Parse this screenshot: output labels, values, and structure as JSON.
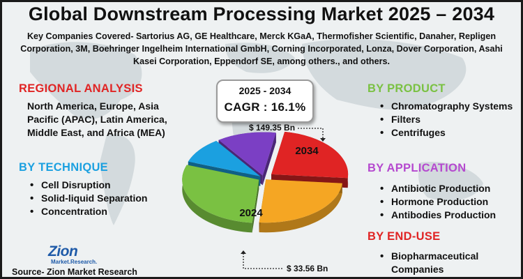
{
  "title": "Global Downstream Processing Market 2025 – 2034",
  "companies_text": "Key Companies Covered- Sartorius AG, GE Healthcare, Merck KGaA, Thermofisher Scientific, Danaher, Repligen Corporation, 3M, Boehringer Ingelheim International GmbH, Corning Incorporated, Lonza, Dover Corporation, Asahi Kasei Corporation, Eppendorf SE, among others., and others.",
  "regional": {
    "heading": "REGIONAL ANALYSIS",
    "text": "North America, Europe, Asia Pacific (APAC), Latin America, Middle East, and Africa (MEA)"
  },
  "technique": {
    "heading": "BY TECHNIQUE",
    "items": [
      "Cell Disruption",
      "Solid-liquid Separation",
      "Concentration"
    ]
  },
  "product": {
    "heading": "BY PRODUCT",
    "items": [
      "Chromatography Systems",
      "Filters",
      "Centrifuges"
    ]
  },
  "application": {
    "heading": "BY APPLICATION",
    "items": [
      "Antibiotic Production",
      "Hormone Production",
      "Antibodies Production"
    ]
  },
  "end_use": {
    "heading": "BY END-USE",
    "items": [
      "Biopharmaceutical Companies"
    ]
  },
  "cagr": {
    "period": "2025 - 2034",
    "value": "CAGR : 16.1%"
  },
  "source": "Source- Zion Market Research",
  "logo": {
    "word": "Zion",
    "sub": "Market.Research."
  },
  "colors": {
    "red": "#e02424",
    "blue": "#1ba0e0",
    "green": "#7ac142",
    "purple": "#b549cf",
    "orange": "#f5a623"
  },
  "chart_data": {
    "type": "pie",
    "title": "",
    "series": [
      {
        "values": [
          33.56,
          149.35
        ],
        "categories": [
          "2024",
          "2034"
        ],
        "value_labels": [
          "$ 33.56 Bn",
          "$ 149.35 Bn"
        ],
        "value_units": "USD Bn"
      }
    ],
    "slice_labels": [
      "2024",
      "2034"
    ],
    "slice_colors": [
      "#7ac142",
      "#f5a623",
      "#e02424",
      "#7b3fc4",
      "#1ba0e0"
    ],
    "style": "3d-exploded"
  }
}
